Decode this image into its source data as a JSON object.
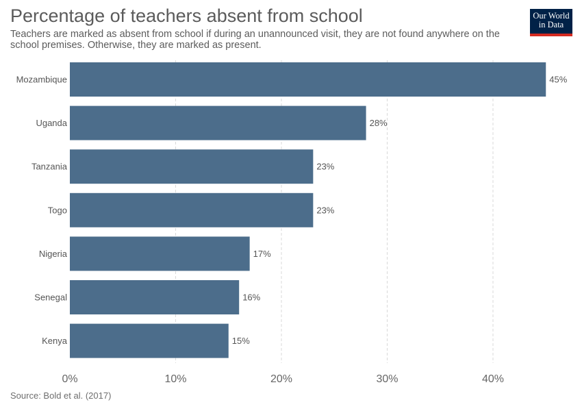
{
  "header": {
    "title": "Percentage of teachers absent from school",
    "subtitle": "Teachers are marked as absent from school if during an unannounced visit, they are not found anywhere on the school premises. Otherwise, they are marked as present."
  },
  "logo": {
    "line1": "Our World",
    "line2": "in Data",
    "bg_color": "#002147",
    "accent_color": "#d42b21"
  },
  "footer": {
    "source": "Source: Bold et al. (2017)"
  },
  "colors": {
    "bar": "#4c6d8b",
    "grid": "#d9d9d9",
    "label": "#555555"
  },
  "chart_data": {
    "type": "bar",
    "orientation": "horizontal",
    "title": "Percentage of teachers absent from school",
    "categories": [
      "Mozambique",
      "Uganda",
      "Tanzania",
      "Togo",
      "Nigeria",
      "Senegal",
      "Kenya"
    ],
    "values": [
      45,
      28,
      23,
      23,
      17,
      16,
      15
    ],
    "value_labels": [
      "45%",
      "28%",
      "23%",
      "23%",
      "17%",
      "16%",
      "15%"
    ],
    "xlim": [
      0,
      45
    ],
    "xticks": [
      0,
      10,
      20,
      30,
      40
    ],
    "xtick_labels": [
      "0%",
      "10%",
      "20%",
      "30%",
      "40%"
    ],
    "grid": "vertical dashed",
    "xlabel": "",
    "ylabel": ""
  }
}
